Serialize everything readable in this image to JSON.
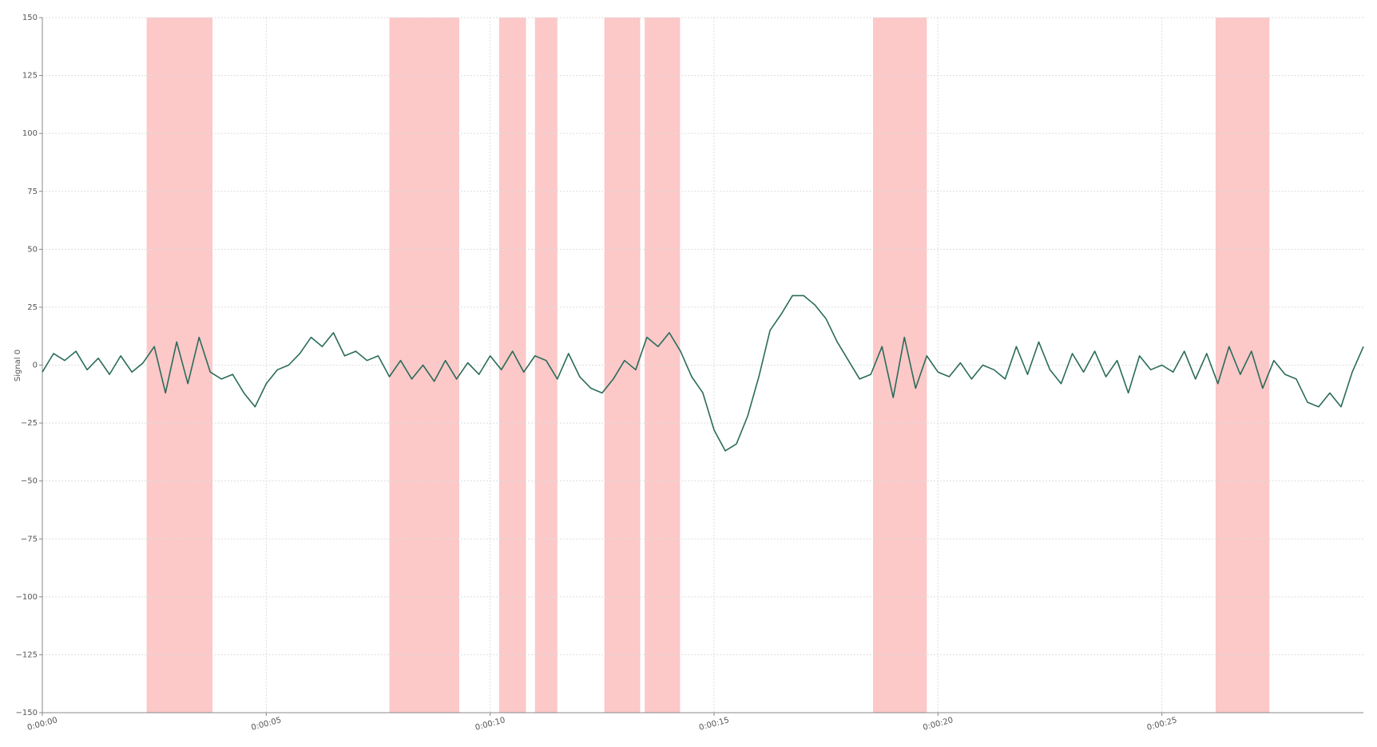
{
  "chart_data": {
    "type": "line",
    "y_label": "Signal 0",
    "x": [
      0,
      0.25,
      0.5,
      0.75,
      1,
      1.25,
      1.5,
      1.75,
      2,
      2.25,
      2.5,
      2.75,
      3,
      3.25,
      3.5,
      3.75,
      4,
      4.25,
      4.5,
      4.75,
      5,
      5.25,
      5.5,
      5.75,
      6,
      6.25,
      6.5,
      6.75,
      7,
      7.25,
      7.5,
      7.75,
      8,
      8.25,
      8.5,
      8.75,
      9,
      9.25,
      9.5,
      9.75,
      10,
      10.25,
      10.5,
      10.75,
      11,
      11.25,
      11.5,
      11.75,
      12,
      12.25,
      12.5,
      12.75,
      13,
      13.25,
      13.5,
      13.75,
      14,
      14.25,
      14.5,
      14.75,
      15,
      15.25,
      15.5,
      15.75,
      16,
      16.25,
      16.5,
      16.75,
      17,
      17.25,
      17.5,
      17.75,
      18,
      18.25,
      18.5,
      18.75,
      19,
      19.25,
      19.5,
      19.75,
      20,
      20.25,
      20.5,
      20.75,
      21,
      21.25,
      21.5,
      21.75,
      22,
      22.25,
      22.5,
      22.75,
      23,
      23.25,
      23.5,
      23.75,
      24,
      24.25,
      24.5,
      24.75,
      25,
      25.25,
      25.5,
      25.75,
      26,
      26.25,
      26.5,
      26.75,
      27,
      27.25,
      27.5,
      27.75,
      28,
      28.25,
      28.5,
      28.75,
      29,
      29.25,
      29.5
    ],
    "series": [
      {
        "color": "#2a6b5a",
        "values": [
          -3,
          5,
          2,
          6,
          -2,
          3,
          -4,
          4,
          -3,
          1,
          8,
          -12,
          10,
          -8,
          12,
          -3,
          -6,
          -4,
          -12,
          -18,
          -8,
          -2,
          0,
          5,
          12,
          8,
          14,
          4,
          6,
          2,
          4,
          -5,
          2,
          -6,
          0,
          -7,
          2,
          -6,
          1,
          -4,
          4,
          -2,
          6,
          -3,
          4,
          2,
          -6,
          5,
          -5,
          -10,
          -12,
          -6,
          2,
          -2,
          12,
          8,
          14,
          6,
          -5,
          -12,
          -28,
          -37,
          -34,
          -22,
          -5,
          15,
          22,
          30,
          30,
          26,
          20,
          10,
          2,
          -6,
          -4,
          8,
          -14,
          12,
          -10,
          4,
          -3,
          -5,
          1,
          -6,
          0,
          -2,
          -6,
          8,
          -4,
          10,
          -2,
          -8,
          5,
          -3,
          6,
          -5,
          2,
          -12,
          4,
          -2,
          0,
          -3,
          6,
          -6,
          5,
          -8,
          8,
          -4,
          6,
          -10,
          2,
          -4,
          -6,
          -16,
          -18,
          -12,
          -18,
          -3,
          8
        ]
      }
    ],
    "regions": [
      [
        2.33,
        3.8
      ],
      [
        7.75,
        9.31
      ],
      [
        10.2,
        10.8
      ],
      [
        11.0,
        11.5
      ],
      [
        12.55,
        13.35
      ],
      [
        13.45,
        14.24
      ],
      [
        18.55,
        19.75
      ],
      [
        26.2,
        27.4
      ]
    ],
    "region_color": "#fcc8c8",
    "xlim": [
      0,
      29.5
    ],
    "xticks": [
      {
        "value": 0,
        "label": "0:00:00"
      },
      {
        "value": 5,
        "label": "0:00:05"
      },
      {
        "value": 10,
        "label": "0:00:10"
      },
      {
        "value": 15,
        "label": "0:00:15"
      },
      {
        "value": 20,
        "label": "0:00:20"
      },
      {
        "value": 25,
        "label": "0:00:25"
      }
    ],
    "ylim": [
      -150,
      150
    ],
    "yticks": [
      {
        "value": -150,
        "label": "−150"
      },
      {
        "value": -125,
        "label": "−125"
      },
      {
        "value": -100,
        "label": "−100"
      },
      {
        "value": -75,
        "label": "−75"
      },
      {
        "value": -50,
        "label": "−50"
      },
      {
        "value": -25,
        "label": "−25"
      },
      0,
      25,
      50,
      75,
      100,
      125,
      150
    ],
    "grid": true
  }
}
